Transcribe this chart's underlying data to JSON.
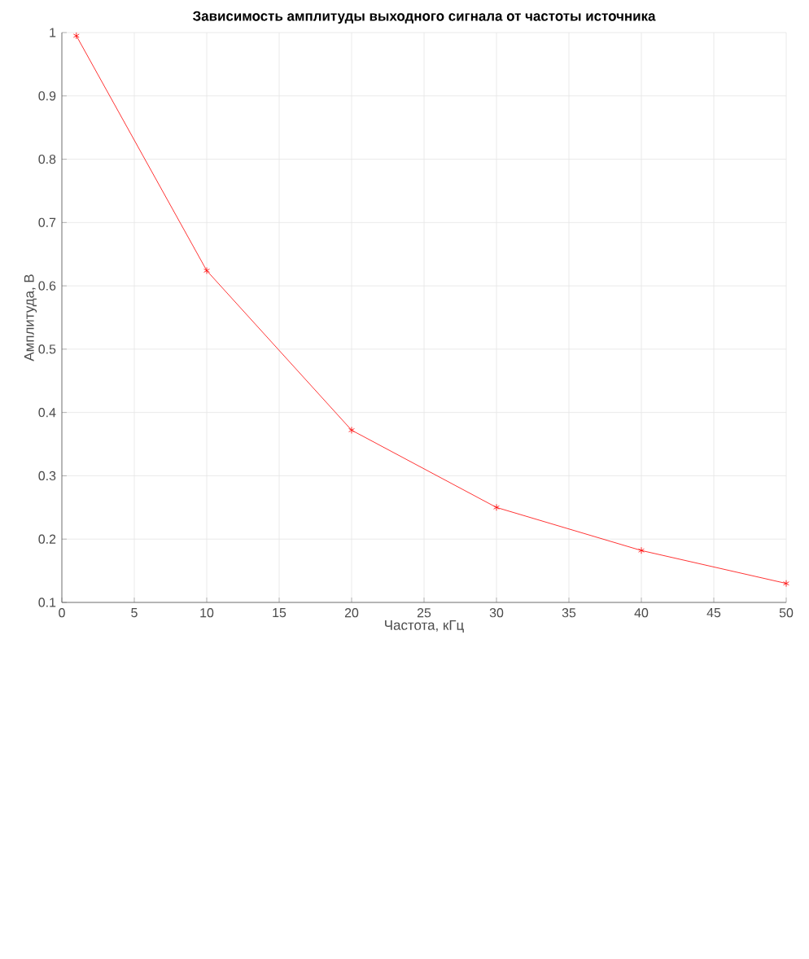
{
  "chart_data": {
    "type": "line",
    "title": "Зависимость амплитуды выходного сигнала от частоты источника",
    "xlabel": "Частота, кГц",
    "ylabel": "Амплитуда, В",
    "x": [
      1,
      10,
      20,
      30,
      40,
      50
    ],
    "series": [
      {
        "color": "#ff0000",
        "values": [
          0.995,
          0.624,
          0.372,
          0.25,
          0.182,
          0.13
        ]
      }
    ],
    "xlim": [
      0,
      50
    ],
    "ylim": [
      0.1,
      1
    ],
    "xticks": [
      0,
      5,
      10,
      15,
      20,
      25,
      30,
      35,
      40,
      45,
      50
    ],
    "yticks": [
      0.1,
      0.2,
      0.3,
      0.4,
      0.5,
      0.6,
      0.7,
      0.8,
      0.9,
      1
    ],
    "grid": true,
    "marker": "cross",
    "line_style": "solid"
  }
}
